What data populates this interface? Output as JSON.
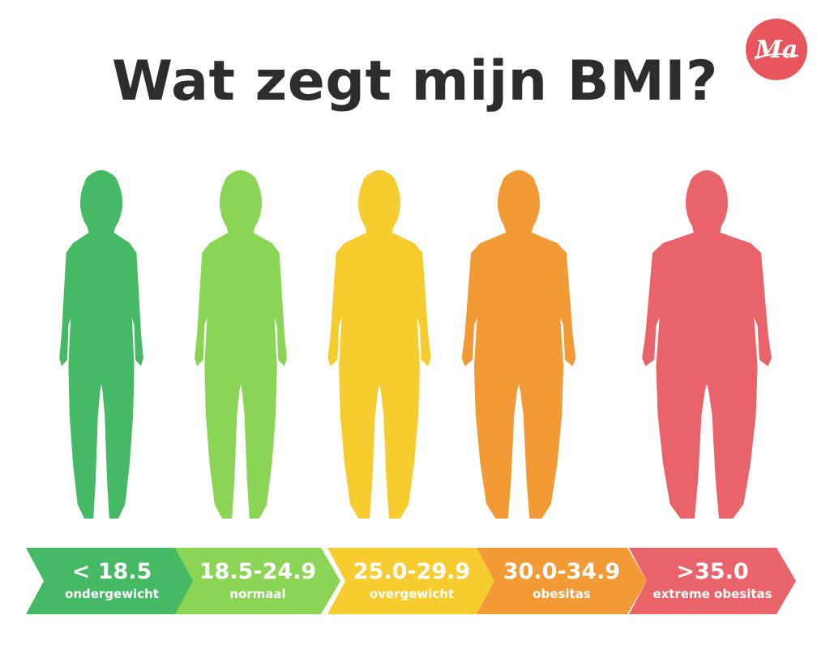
{
  "title": "Wat zegt mijn BMI?",
  "logo": {
    "text": "Ma",
    "color": "#e8565d"
  },
  "categories": [
    {
      "range": "< 18.5",
      "label": "ondergewicht",
      "color": "#45b964"
    },
    {
      "range": "18.5-24.9",
      "label": "normaal",
      "color": "#8ad456"
    },
    {
      "range": "25.0-29.9",
      "label": "overgewicht",
      "color": "#f6cc2e"
    },
    {
      "range": "30.0-34.9",
      "label": "obesitas",
      "color": "#f29a36"
    },
    {
      "range": ">35.0",
      "label": "extreme obesitas",
      "color": "#e8636a"
    }
  ]
}
